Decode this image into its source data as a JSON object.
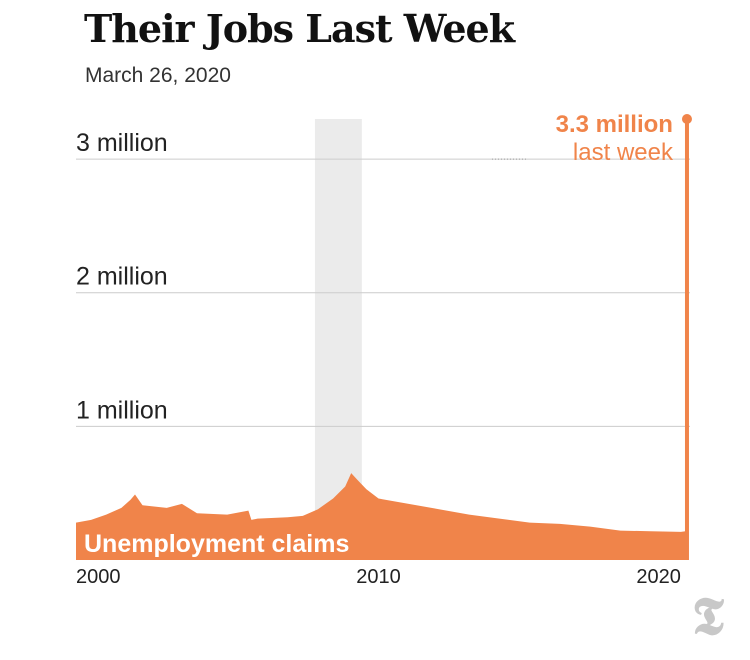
{
  "header": {
    "title": "Their Jobs Last Week",
    "date": "March 26, 2020"
  },
  "chart_data": {
    "type": "area",
    "series_label": "Unemployment claims",
    "ylim": [
      0,
      3300000
    ],
    "xlim": [
      2000,
      2020.3
    ],
    "yticks": [
      {
        "value": 1000000,
        "label": "1 million"
      },
      {
        "value": 2000000,
        "label": "2 million"
      },
      {
        "value": 3000000,
        "label": "3 million"
      }
    ],
    "xticks": [
      {
        "value": 2000,
        "label": "2000"
      },
      {
        "value": 2010,
        "label": "2010"
      },
      {
        "value": 2020,
        "label": "2020"
      }
    ],
    "recession_band": [
      2007.9,
      2009.45
    ],
    "annotation": {
      "value_label": "3.3 million",
      "sub_label": "last week",
      "x": 2020.2,
      "y": 3300000
    },
    "colors": {
      "series": "#f0844a",
      "band": "#ebebeb",
      "grid": "#cccccc"
    },
    "x": [
      2000.0,
      2000.5,
      2001.0,
      2001.5,
      2001.8,
      2001.95,
      2002.2,
      2003.0,
      2003.5,
      2004.0,
      2005.0,
      2005.7,
      2005.8,
      2006.0,
      2007.0,
      2007.5,
      2008.0,
      2008.5,
      2008.9,
      2009.1,
      2009.3,
      2009.6,
      2010.0,
      2011.0,
      2012.0,
      2013.0,
      2014.0,
      2015.0,
      2016.0,
      2017.0,
      2018.0,
      2019.0,
      2020.0,
      2020.15,
      2020.18,
      2020.2
    ],
    "y": [
      280000,
      300000,
      340000,
      390000,
      450000,
      490000,
      410000,
      390000,
      420000,
      350000,
      340000,
      370000,
      300000,
      310000,
      320000,
      330000,
      380000,
      460000,
      550000,
      650000,
      600000,
      530000,
      460000,
      420000,
      380000,
      340000,
      310000,
      280000,
      270000,
      250000,
      220000,
      215000,
      210000,
      215000,
      3300000,
      3300000
    ]
  }
}
